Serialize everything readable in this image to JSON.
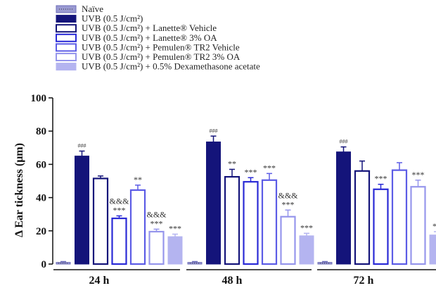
{
  "chart_data": {
    "type": "bar",
    "ylabel": "Δ Ear tickness (μm)",
    "ylim": [
      0,
      100
    ],
    "yticks": [
      "0",
      "20",
      "40",
      "60",
      "80",
      "100"
    ],
    "groups": [
      "24 h",
      "48 h",
      "72 h"
    ],
    "series": [
      {
        "name": "Naïve",
        "values": [
          1,
          1,
          1
        ],
        "errors": [
          0.5,
          0.5,
          0.5
        ],
        "fill": "#9a9ad2",
        "stroke": "#6e6eb8",
        "style": "dotted"
      },
      {
        "name": "UVB (0.5 J/cm²)",
        "values": [
          65,
          73.5,
          67.5
        ],
        "errors": [
          3,
          3.5,
          3
        ],
        "fill": "#14147a",
        "stroke": "#14147a",
        "style": "solid"
      },
      {
        "name": "UVB (0.5 J/cm²) + Lanette® Vehicle",
        "values": [
          51.5,
          52.5,
          56
        ],
        "errors": [
          1.5,
          4.5,
          6
        ],
        "fill": "#ffffff",
        "stroke": "#14147a",
        "style": "hollow"
      },
      {
        "name": "UVB (0.5 J/cm²) + Lanette® 3% OA",
        "values": [
          27.5,
          49.5,
          45
        ],
        "errors": [
          1.5,
          2.5,
          3
        ],
        "fill": "#ffffff",
        "stroke": "#2a2ad6",
        "style": "hollow"
      },
      {
        "name": "UVB (0.5 J/cm²) + Pemulen® TR2 Vehicle",
        "values": [
          44.5,
          50.5,
          56.5
        ],
        "errors": [
          3,
          4,
          4.5
        ],
        "fill": "#ffffff",
        "stroke": "#5c5ce6",
        "style": "hollow"
      },
      {
        "name": "UVB (0.5 J/cm²) + Pemulen® TR2 3% OA",
        "values": [
          19.5,
          28.5,
          46.5
        ],
        "errors": [
          1.5,
          4,
          4
        ],
        "fill": "#ffffff",
        "stroke": "#9696ec",
        "style": "hollow"
      },
      {
        "name": "UVB (0.5 J/cm²) + 0.5% Dexamethasone acetate",
        "values": [
          16.5,
          17,
          17.5
        ],
        "errors": [
          1.5,
          1.5,
          2
        ],
        "fill": "#b4b4f0",
        "stroke": "#b4b4f0",
        "style": "solid"
      }
    ],
    "annotations": [
      {
        "group": 0,
        "series": 1,
        "lines": [
          "###"
        ]
      },
      {
        "group": 0,
        "series": 3,
        "lines": [
          "&&&",
          "***"
        ]
      },
      {
        "group": 0,
        "series": 4,
        "lines": [
          "**"
        ]
      },
      {
        "group": 0,
        "series": 5,
        "lines": [
          "&&&",
          "***"
        ]
      },
      {
        "group": 0,
        "series": 6,
        "lines": [
          "***"
        ]
      },
      {
        "group": 1,
        "series": 1,
        "lines": [
          "###"
        ]
      },
      {
        "group": 1,
        "series": 2,
        "lines": [
          "**"
        ]
      },
      {
        "group": 1,
        "series": 3,
        "lines": [
          "***"
        ]
      },
      {
        "group": 1,
        "series": 4,
        "lines": [
          "***"
        ]
      },
      {
        "group": 1,
        "series": 5,
        "lines": [
          "&&&",
          "***"
        ]
      },
      {
        "group": 1,
        "series": 6,
        "lines": [
          "***"
        ]
      },
      {
        "group": 2,
        "series": 1,
        "lines": [
          "###"
        ]
      },
      {
        "group": 2,
        "series": 3,
        "lines": [
          "***"
        ]
      },
      {
        "group": 2,
        "series": 5,
        "lines": [
          "***"
        ]
      },
      {
        "group": 2,
        "series": 6,
        "lines": [
          "**"
        ]
      }
    ]
  }
}
